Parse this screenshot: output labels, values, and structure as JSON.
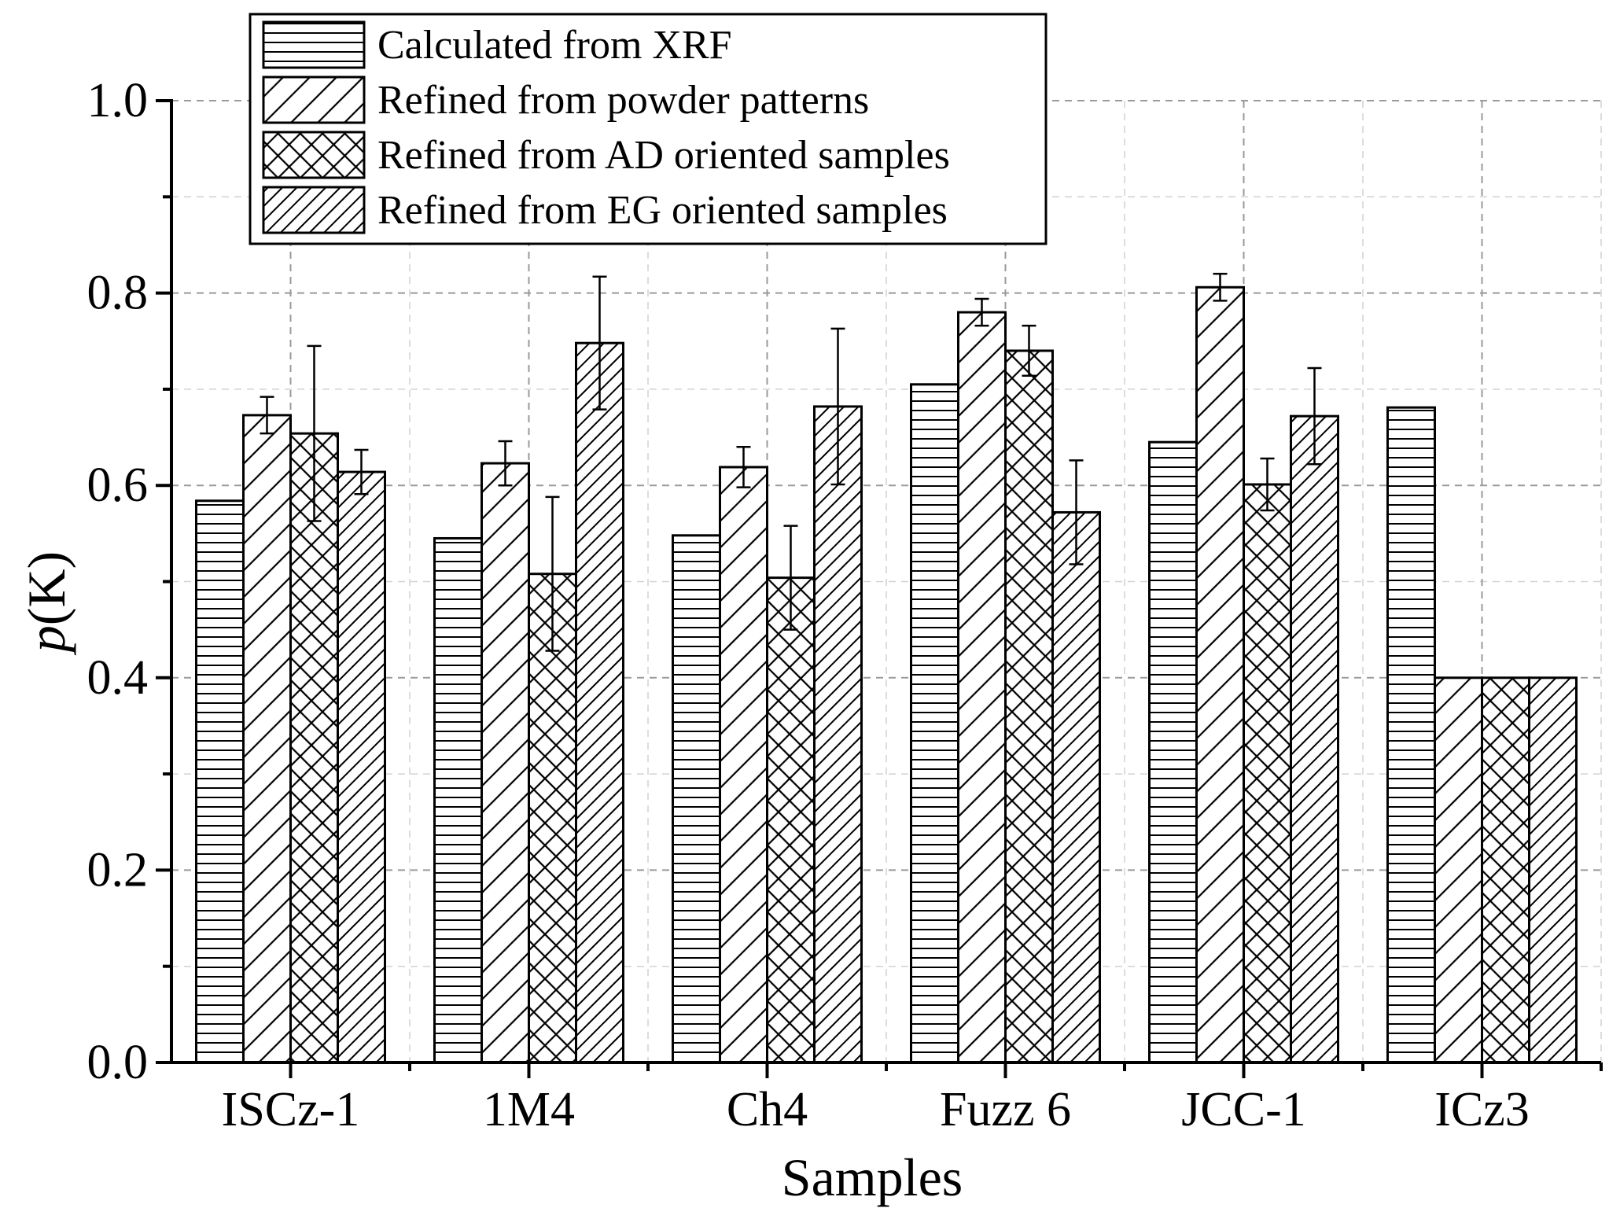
{
  "chart_data": {
    "type": "bar",
    "title": "",
    "xlabel": "Samples",
    "ylabel_italic": "p",
    "ylabel_rest": "(K)",
    "ylim": [
      0,
      1.0
    ],
    "yticks": [
      "0.0",
      "0.2",
      "0.4",
      "0.6",
      "0.8",
      "1.0"
    ],
    "ytick_values": [
      0,
      0.2,
      0.4,
      0.6,
      0.8,
      1.0
    ],
    "grid": true,
    "legend_position": "top-left",
    "categories": [
      "ISCz-1",
      "1M4",
      "Ch4",
      "Fuzz 6",
      "JCC-1",
      "ICz3"
    ],
    "series": [
      {
        "name": "Calculated from XRF",
        "pattern": "horizontal",
        "values": [
          0.584,
          0.545,
          0.548,
          0.705,
          0.645,
          0.681
        ],
        "errors": [
          null,
          null,
          null,
          null,
          null,
          null
        ]
      },
      {
        "name": "Refined from powder patterns",
        "pattern": "diagonal",
        "values": [
          0.673,
          0.623,
          0.619,
          0.78,
          0.806,
          0.4
        ],
        "errors": [
          0.019,
          0.023,
          0.021,
          0.014,
          0.014,
          null
        ]
      },
      {
        "name": "Refined from AD oriented samples",
        "pattern": "crosshatch",
        "values": [
          0.654,
          0.508,
          0.504,
          0.74,
          0.601,
          0.4
        ],
        "errors": [
          0.091,
          0.08,
          0.054,
          0.026,
          0.027,
          null
        ]
      },
      {
        "name": "Refined from EG oriented samples",
        "pattern": "dense-diagonal",
        "values": [
          0.614,
          0.748,
          0.682,
          0.572,
          0.672,
          0.4
        ],
        "errors": [
          0.023,
          0.069,
          0.081,
          0.054,
          0.05,
          null
        ]
      }
    ]
  }
}
